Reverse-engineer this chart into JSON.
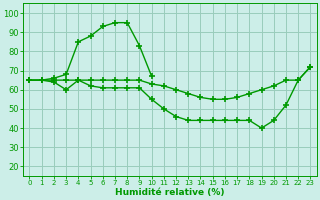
{
  "xlabel": "Humidité relative (%)",
  "bg_color": "#cceee8",
  "grid_color": "#99ccbb",
  "line_color": "#009900",
  "marker": "+",
  "markersize": 4,
  "markeredgewidth": 1.2,
  "linewidth": 1.0,
  "xlim": [
    -0.5,
    23.5
  ],
  "ylim": [
    15,
    105
  ],
  "yticks": [
    20,
    30,
    40,
    50,
    60,
    70,
    80,
    90,
    100
  ],
  "xticks": [
    0,
    1,
    2,
    3,
    4,
    5,
    6,
    7,
    8,
    9,
    10,
    11,
    12,
    13,
    14,
    15,
    16,
    17,
    18,
    19,
    20,
    21,
    22,
    23
  ],
  "series": [
    [
      65,
      65,
      66,
      68,
      85,
      88,
      93,
      95,
      95,
      83,
      67,
      null,
      null,
      null,
      null,
      null,
      null,
      null,
      null,
      null,
      null,
      null,
      null,
      null
    ],
    [
      65,
      65,
      64,
      60,
      65,
      62,
      61,
      61,
      61,
      61,
      55,
      50,
      46,
      44,
      44,
      44,
      44,
      44,
      44,
      40,
      44,
      52,
      65,
      72
    ],
    [
      65,
      65,
      65,
      65,
      65,
      65,
      65,
      65,
      65,
      65,
      63,
      62,
      60,
      58,
      56,
      55,
      55,
      56,
      58,
      60,
      62,
      65,
      65,
      72
    ]
  ]
}
